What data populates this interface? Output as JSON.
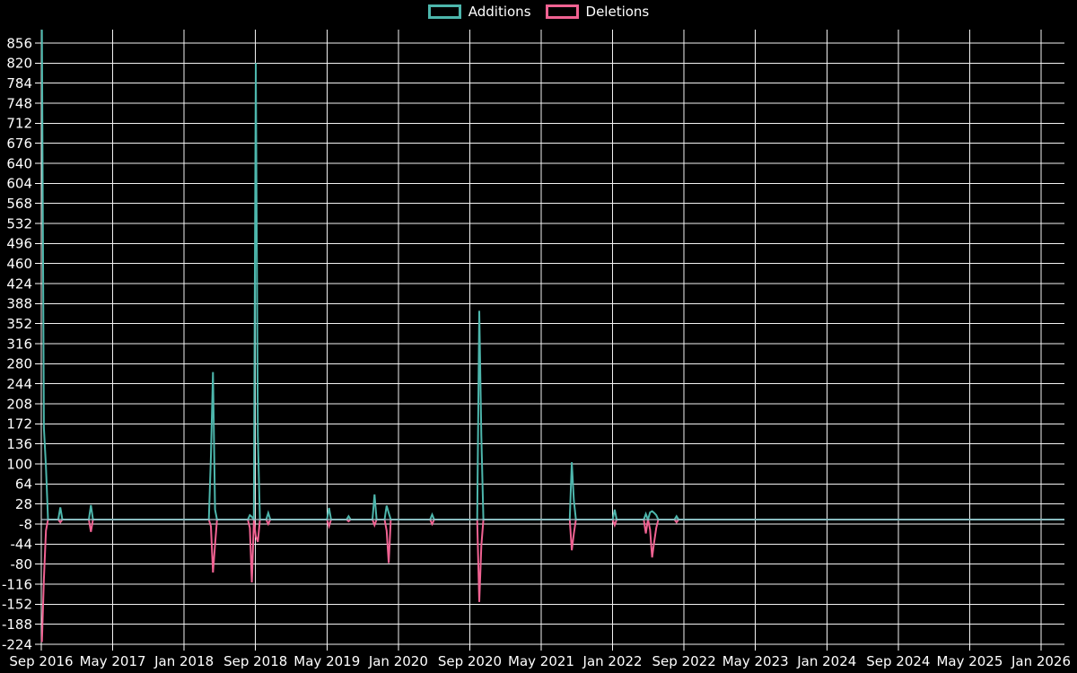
{
  "app": {
    "background_color": "#000000",
    "text_color": "#ffffff",
    "grid_color": "#f2f2f2"
  },
  "legend": {
    "items": [
      {
        "label": "Additions",
        "color": "#4db6ac"
      },
      {
        "label": "Deletions",
        "color": "#f06292"
      }
    ]
  },
  "chart_data": {
    "type": "line",
    "title": "",
    "xlabel": "",
    "ylabel": "",
    "grid": true,
    "legend_position": "top-center",
    "x_axis": {
      "tick_labels": [
        "Sep 2016",
        "May 2017",
        "Jan 2018",
        "Sep 2018",
        "May 2019",
        "Jan 2020",
        "Sep 2020",
        "May 2021",
        "Jan 2022",
        "Sep 2022",
        "May 2023",
        "Jan 2024",
        "Sep 2024",
        "May 2025",
        "Jan 2026"
      ],
      "tick_month_offsets": [
        0,
        8,
        16,
        24,
        32,
        40,
        48,
        56,
        64,
        72,
        80,
        88,
        96,
        104,
        112
      ],
      "start": "2016-09-01",
      "end": "2026-03-15"
    },
    "y_axis": {
      "ticks": [
        856,
        820,
        784,
        748,
        712,
        676,
        640,
        604,
        568,
        532,
        496,
        460,
        424,
        388,
        352,
        316,
        280,
        244,
        208,
        172,
        136,
        100,
        64,
        28,
        -8,
        -44,
        -80,
        -116,
        -152,
        -188,
        -224
      ],
      "min": -224,
      "max": 856,
      "step": 36
    },
    "series": [
      {
        "name": "Additions",
        "color": "#4db6ac"
      },
      {
        "name": "Deletions",
        "color": "#f06292"
      }
    ],
    "baseline_value": 0,
    "zero_line_color": "#a7bfc9",
    "points": [
      {
        "date": "2016-09-03",
        "additions": 880,
        "deletions": -220,
        "clipped_top": true
      },
      {
        "date": "2016-09-10",
        "additions": 165,
        "deletions": -107
      },
      {
        "date": "2016-09-17",
        "additions": 95,
        "deletions": -20
      },
      {
        "date": "2016-11-05",
        "additions": 22,
        "deletions": -5
      },
      {
        "date": "2017-02-18",
        "additions": 26,
        "deletions": -22
      },
      {
        "date": "2018-04-01",
        "additions": 113,
        "deletions": -12
      },
      {
        "date": "2018-04-08",
        "additions": 265,
        "deletions": -95
      },
      {
        "date": "2018-04-15",
        "additions": 18,
        "deletions": -45
      },
      {
        "date": "2018-08-12",
        "additions": 8,
        "deletions": -15
      },
      {
        "date": "2018-08-19",
        "additions": 5,
        "deletions": -113
      },
      {
        "date": "2018-09-02",
        "additions": 820,
        "deletions": -30
      },
      {
        "date": "2018-09-09",
        "additions": 150,
        "deletions": -40
      },
      {
        "date": "2018-10-14",
        "additions": 12,
        "deletions": -8
      },
      {
        "date": "2019-05-08",
        "additions": 21,
        "deletions": -12
      },
      {
        "date": "2019-07-14",
        "additions": 6,
        "deletions": -3
      },
      {
        "date": "2019-10-11",
        "additions": 45,
        "deletions": -10
      },
      {
        "date": "2019-11-22",
        "additions": 25,
        "deletions": -20
      },
      {
        "date": "2019-11-29",
        "additions": 12,
        "deletions": -78
      },
      {
        "date": "2020-04-25",
        "additions": 9,
        "deletions": -8
      },
      {
        "date": "2020-10-03",
        "additions": 375,
        "deletions": -148
      },
      {
        "date": "2020-10-10",
        "additions": 150,
        "deletions": -47
      },
      {
        "date": "2021-08-14",
        "additions": 103,
        "deletions": -55
      },
      {
        "date": "2021-08-21",
        "additions": 34,
        "deletions": -25
      },
      {
        "date": "2022-01-08",
        "additions": 18,
        "deletions": -10
      },
      {
        "date": "2022-04-23",
        "additions": 10,
        "deletions": -25
      },
      {
        "date": "2022-05-07",
        "additions": 13,
        "deletions": -18
      },
      {
        "date": "2022-05-14",
        "additions": 15,
        "deletions": -68
      },
      {
        "date": "2022-05-21",
        "additions": 12,
        "deletions": -40
      },
      {
        "date": "2022-05-28",
        "additions": 8,
        "deletions": -15
      },
      {
        "date": "2022-08-06",
        "additions": 6,
        "deletions": -5
      }
    ]
  }
}
